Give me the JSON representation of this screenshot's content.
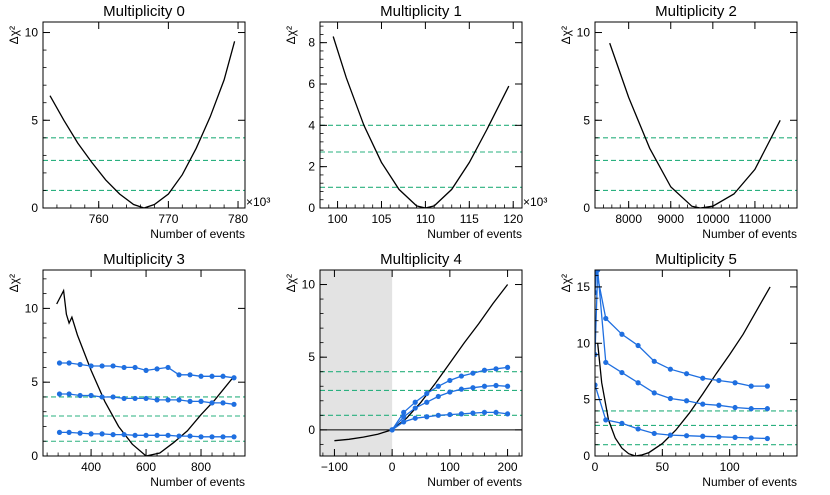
{
  "colors": {
    "curve": "#000000",
    "band": "#2ab07f",
    "series": "#1f6fe0",
    "shade": "#e3e3e3",
    "axis": "#000000"
  },
  "chart_data": [
    {
      "type": "line",
      "title": "Multiplicity 0",
      "xlabel": "Number of events",
      "ylabel": "Δχ²",
      "xlim": [
        752,
        781
      ],
      "ylim": [
        0,
        10.6
      ],
      "xticks": [
        760,
        770,
        780
      ],
      "xtick_labels": [
        "760",
        "770",
        "780"
      ],
      "yticks": [
        0,
        5,
        10
      ],
      "ytick_labels": [
        "0",
        "5",
        "10"
      ],
      "exponent": "×10³",
      "hlines": [
        1,
        2.71,
        4
      ],
      "shade": null,
      "zero_line": false,
      "curve": {
        "x": [
          753,
          755,
          757,
          759,
          761,
          763,
          765,
          766.5,
          768,
          770,
          772,
          774,
          776,
          778,
          779.5
        ],
        "y": [
          6.4,
          5.0,
          3.7,
          2.6,
          1.6,
          0.8,
          0.2,
          0.0,
          0.2,
          0.8,
          1.9,
          3.4,
          5.2,
          7.3,
          9.5
        ]
      },
      "series": []
    },
    {
      "type": "line",
      "title": "Multiplicity 1",
      "xlabel": "Number of events",
      "ylabel": "Δχ²",
      "xlim": [
        98,
        121
      ],
      "ylim": [
        0,
        9
      ],
      "xticks": [
        100,
        105,
        110,
        115,
        120
      ],
      "xtick_labels": [
        "100",
        "105",
        "110",
        "115",
        "120"
      ],
      "yticks": [
        0,
        2,
        4,
        6,
        8
      ],
      "ytick_labels": [
        "0",
        "2",
        "4",
        "6",
        "8"
      ],
      "exponent": "×10³",
      "hlines": [
        1,
        2.71,
        4
      ],
      "shade": null,
      "zero_line": false,
      "curve": {
        "x": [
          99.5,
          101,
          103,
          105,
          107,
          109,
          110,
          111,
          113,
          115,
          117,
          119.5
        ],
        "y": [
          8.3,
          6.3,
          4.0,
          2.2,
          0.9,
          0.1,
          0.0,
          0.1,
          0.9,
          2.2,
          3.8,
          5.9
        ]
      },
      "series": []
    },
    {
      "type": "line",
      "title": "Multiplicity 2",
      "xlabel": "Number of events",
      "ylabel": "Δχ²",
      "xlim": [
        7200,
        12000
      ],
      "ylim": [
        0,
        10.6
      ],
      "xticks": [
        8000,
        9000,
        10000,
        11000
      ],
      "xtick_labels": [
        "8000",
        "9000",
        "10000",
        "11000"
      ],
      "yticks": [
        0,
        5,
        10
      ],
      "ytick_labels": [
        "0",
        "5",
        "10"
      ],
      "exponent": "",
      "hlines": [
        1,
        2.71,
        4
      ],
      "shade": null,
      "zero_line": false,
      "curve": {
        "x": [
          7550,
          8000,
          8500,
          9000,
          9500,
          9700,
          10000,
          10500,
          11000,
          11600
        ],
        "y": [
          9.4,
          6.3,
          3.4,
          1.2,
          0.1,
          0.0,
          0.1,
          0.8,
          2.2,
          5.0
        ]
      },
      "series": []
    },
    {
      "type": "line",
      "title": "Multiplicity 3",
      "xlabel": "Number of events",
      "ylabel": "Δχ²",
      "xlim": [
        225,
        960
      ],
      "ylim": [
        0,
        12.6
      ],
      "xticks": [
        400,
        600,
        800
      ],
      "xtick_labels": [
        "400",
        "600",
        "800"
      ],
      "yticks": [
        0,
        5,
        10
      ],
      "ytick_labels": [
        "0",
        "5",
        "10"
      ],
      "exponent": "",
      "hlines": [
        1,
        2.71,
        4
      ],
      "shade": null,
      "zero_line": false,
      "curve": {
        "x": [
          275,
          300,
          310,
          320,
          330,
          350,
          400,
          450,
          500,
          550,
          600,
          650,
          700,
          750,
          800,
          850,
          920
        ],
        "y": [
          10.3,
          11.2,
          9.6,
          9.0,
          9.4,
          8.2,
          5.8,
          3.7,
          2.0,
          0.8,
          0.0,
          0.2,
          0.9,
          1.7,
          2.8,
          3.8,
          5.4
        ]
      },
      "series": [
        {
          "name": "upper",
          "x": [
            285,
            320,
            360,
            400,
            440,
            480,
            520,
            560,
            600,
            640,
            680,
            720,
            760,
            800,
            840,
            880,
            920
          ],
          "y": [
            6.3,
            6.3,
            6.2,
            6.1,
            6.1,
            6.1,
            6.0,
            6.0,
            5.8,
            5.9,
            6.0,
            5.5,
            5.5,
            5.4,
            5.4,
            5.4,
            5.3
          ]
        },
        {
          "name": "middle",
          "x": [
            285,
            320,
            360,
            400,
            440,
            480,
            520,
            560,
            600,
            640,
            680,
            720,
            760,
            800,
            840,
            880,
            920
          ],
          "y": [
            4.2,
            4.2,
            4.1,
            4.1,
            4.0,
            4.0,
            3.9,
            3.9,
            3.9,
            3.8,
            3.8,
            3.8,
            3.7,
            3.7,
            3.6,
            3.6,
            3.5
          ]
        },
        {
          "name": "lower",
          "x": [
            285,
            320,
            360,
            400,
            440,
            480,
            520,
            560,
            600,
            640,
            680,
            720,
            760,
            800,
            840,
            880,
            920
          ],
          "y": [
            1.6,
            1.6,
            1.55,
            1.5,
            1.5,
            1.45,
            1.45,
            1.4,
            1.4,
            1.4,
            1.4,
            1.35,
            1.35,
            1.3,
            1.3,
            1.3,
            1.3
          ]
        }
      ]
    },
    {
      "type": "line",
      "title": "Multiplicity 4",
      "xlabel": "Number of events",
      "ylabel": "Δχ²",
      "xlim": [
        -125,
        225
      ],
      "ylim": [
        -1.8,
        11
      ],
      "xticks": [
        -100,
        0,
        100,
        200
      ],
      "xtick_labels": [
        "−100",
        "0",
        "100",
        "200"
      ],
      "yticks": [
        0,
        5,
        10
      ],
      "ytick_labels": [
        "0",
        "5",
        "10"
      ],
      "exponent": "",
      "hlines": [
        1,
        2.71,
        4
      ],
      "shade": [
        -125,
        0
      ],
      "zero_line": true,
      "curve": {
        "x": [
          -100,
          -75,
          -50,
          -25,
          0,
          25,
          50,
          75,
          100,
          125,
          150,
          175,
          200
        ],
        "y": [
          -0.75,
          -0.65,
          -0.5,
          -0.3,
          0.0,
          0.8,
          1.9,
          3.2,
          4.6,
          6.0,
          7.3,
          8.7,
          10.0
        ]
      },
      "series": [
        {
          "name": "upper",
          "x": [
            0,
            20,
            40,
            60,
            80,
            100,
            120,
            140,
            160,
            180,
            200
          ],
          "y": [
            0.0,
            1.2,
            1.9,
            2.5,
            3.0,
            3.4,
            3.7,
            3.9,
            4.1,
            4.2,
            4.3
          ]
        },
        {
          "name": "middle",
          "x": [
            0,
            20,
            40,
            60,
            80,
            100,
            120,
            140,
            160,
            180,
            200
          ],
          "y": [
            0.0,
            0.9,
            1.5,
            1.9,
            2.3,
            2.6,
            2.8,
            2.9,
            3.0,
            3.05,
            3.0
          ]
        },
        {
          "name": "lower",
          "x": [
            0,
            20,
            40,
            60,
            80,
            100,
            120,
            140,
            160,
            180,
            200
          ],
          "y": [
            0.0,
            0.55,
            0.8,
            0.9,
            1.0,
            1.05,
            1.1,
            1.15,
            1.2,
            1.2,
            1.1
          ]
        }
      ]
    },
    {
      "type": "line",
      "title": "Multiplicity 5",
      "xlabel": "Number of events",
      "ylabel": "Δχ²",
      "xlim": [
        0,
        150
      ],
      "ylim": [
        0,
        16.5
      ],
      "xticks": [
        0,
        50,
        100
      ],
      "xtick_labels": [
        "0",
        "50",
        "100"
      ],
      "yticks": [
        0,
        5,
        10,
        15
      ],
      "ytick_labels": [
        "0",
        "5",
        "10",
        "15"
      ],
      "exponent": "",
      "hlines": [
        1,
        2.71,
        4
      ],
      "shade": null,
      "zero_line": false,
      "curve": {
        "x": [
          2,
          5,
          10,
          15,
          20,
          25,
          30,
          35,
          40,
          50,
          60,
          70,
          80,
          90,
          100,
          110,
          120,
          130
        ],
        "y": [
          10.0,
          6.5,
          3.2,
          1.6,
          0.7,
          0.2,
          0.0,
          0.1,
          0.3,
          1.1,
          2.3,
          3.8,
          5.5,
          7.3,
          9.0,
          10.8,
          12.9,
          15.0
        ]
      },
      "series": [
        {
          "name": "upper",
          "x": [
            0,
            1,
            8,
            20,
            32,
            44,
            56,
            68,
            80,
            92,
            104,
            116,
            128
          ],
          "y": [
            14.5,
            16.5,
            12.2,
            10.8,
            9.8,
            8.4,
            7.7,
            7.3,
            6.9,
            6.7,
            6.5,
            6.2,
            6.2
          ]
        },
        {
          "name": "middle",
          "x": [
            0,
            2,
            8,
            20,
            32,
            44,
            56,
            68,
            80,
            92,
            104,
            116,
            128
          ],
          "y": [
            9.0,
            16.5,
            8.3,
            7.4,
            6.5,
            5.6,
            5.1,
            4.9,
            4.6,
            4.5,
            4.3,
            4.2,
            4.2
          ]
        },
        {
          "name": "lower",
          "x": [
            0,
            8,
            20,
            32,
            44,
            56,
            68,
            80,
            92,
            104,
            116,
            128
          ],
          "y": [
            6.3,
            3.2,
            2.9,
            2.4,
            2.0,
            1.85,
            1.8,
            1.75,
            1.7,
            1.65,
            1.6,
            1.55
          ]
        }
      ]
    }
  ]
}
